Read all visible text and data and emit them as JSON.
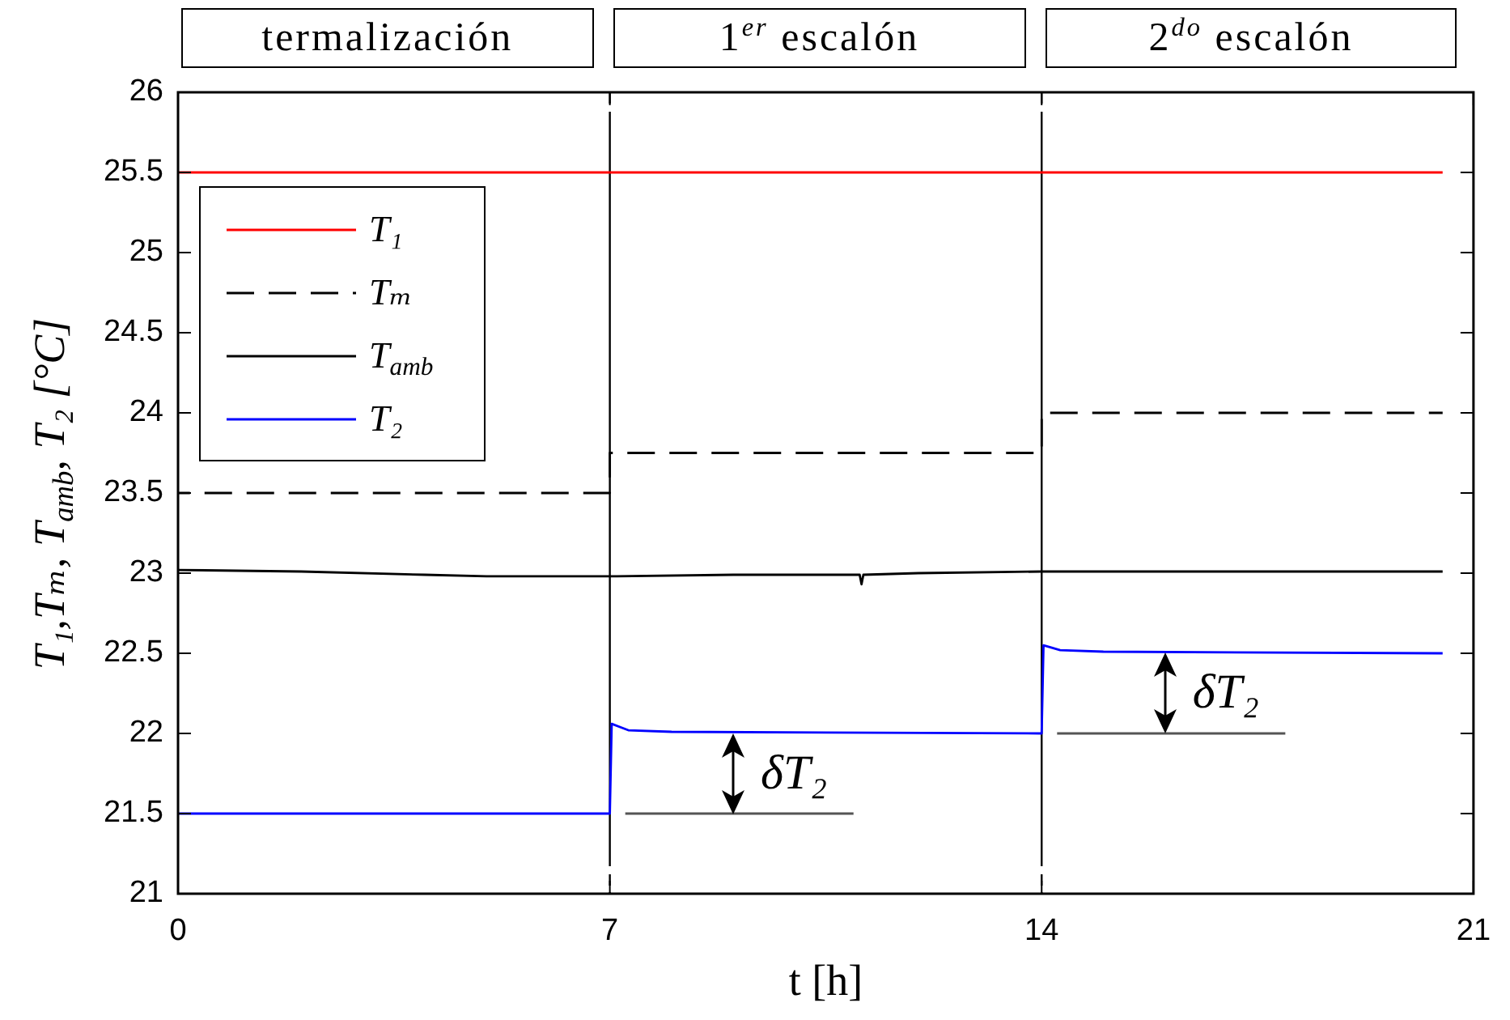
{
  "chart_data": {
    "type": "line",
    "xlabel": "t [h]",
    "ylabel": "T₁,Tₘ, T$_{amb}$, T₂ [°C]",
    "xlim": [
      0,
      21
    ],
    "xticks": [
      0,
      7,
      14,
      21
    ],
    "ylim": [
      21,
      26
    ],
    "yticks": [
      21,
      21.5,
      22,
      22.5,
      23,
      23.5,
      24,
      24.5,
      25,
      25.5,
      26
    ],
    "grid": false,
    "legend": "top left",
    "marker": "none",
    "series": [
      {
        "name": "T₁",
        "color": "#ff0000",
        "x": [
          0,
          20.5
        ],
        "values": [
          25.5,
          25.5
        ]
      },
      {
        "name": "Tₘ",
        "type": "step",
        "line_style": "dashed",
        "color": "#000000",
        "x": [
          0,
          7,
          14,
          20.5
        ],
        "values": [
          23.5,
          23.75,
          24.0,
          24.0
        ]
      },
      {
        "name": "T$_{amb}$",
        "color": "#000000",
        "x": [
          0,
          2,
          4,
          5,
          7,
          9,
          11.05,
          11.08,
          11.11,
          12,
          14,
          17,
          20.5
        ],
        "values": [
          23.02,
          23.01,
          22.99,
          22.98,
          22.98,
          22.99,
          22.99,
          22.93,
          22.99,
          23.0,
          23.01,
          23.01,
          23.01
        ]
      },
      {
        "name": "T₂",
        "color": "#0000ff",
        "x": [
          0,
          7,
          7.03,
          7.3,
          8,
          14,
          14.03,
          14.3,
          15,
          20.5
        ],
        "values": [
          21.5,
          21.5,
          22.06,
          22.02,
          22.01,
          22.0,
          22.55,
          22.52,
          22.51,
          22.5
        ]
      },
      {
        "color": "#555555",
        "x": [
          7.25,
          10.95
        ],
        "values": [
          21.5,
          21.5
        ]
      },
      {
        "color": "#555555",
        "x": [
          14.25,
          17.95
        ],
        "values": [
          22.0,
          22.0
        ]
      }
    ],
    "ref_lines": [
      {
        "axis": "x",
        "value": 7,
        "color": "#000000",
        "line_style": "dashed"
      },
      {
        "axis": "x",
        "value": 14,
        "color": "#000000",
        "line_style": "dashed"
      }
    ],
    "annotations": [
      "termalización",
      "1$^{er}$ escalón",
      "2$^{do}$ escalón",
      {
        "text": "δT₂",
        "x": 9,
        "y": 21.5
      },
      {
        "text": "δT₂",
        "x": 16,
        "y": 22.0
      }
    ]
  }
}
